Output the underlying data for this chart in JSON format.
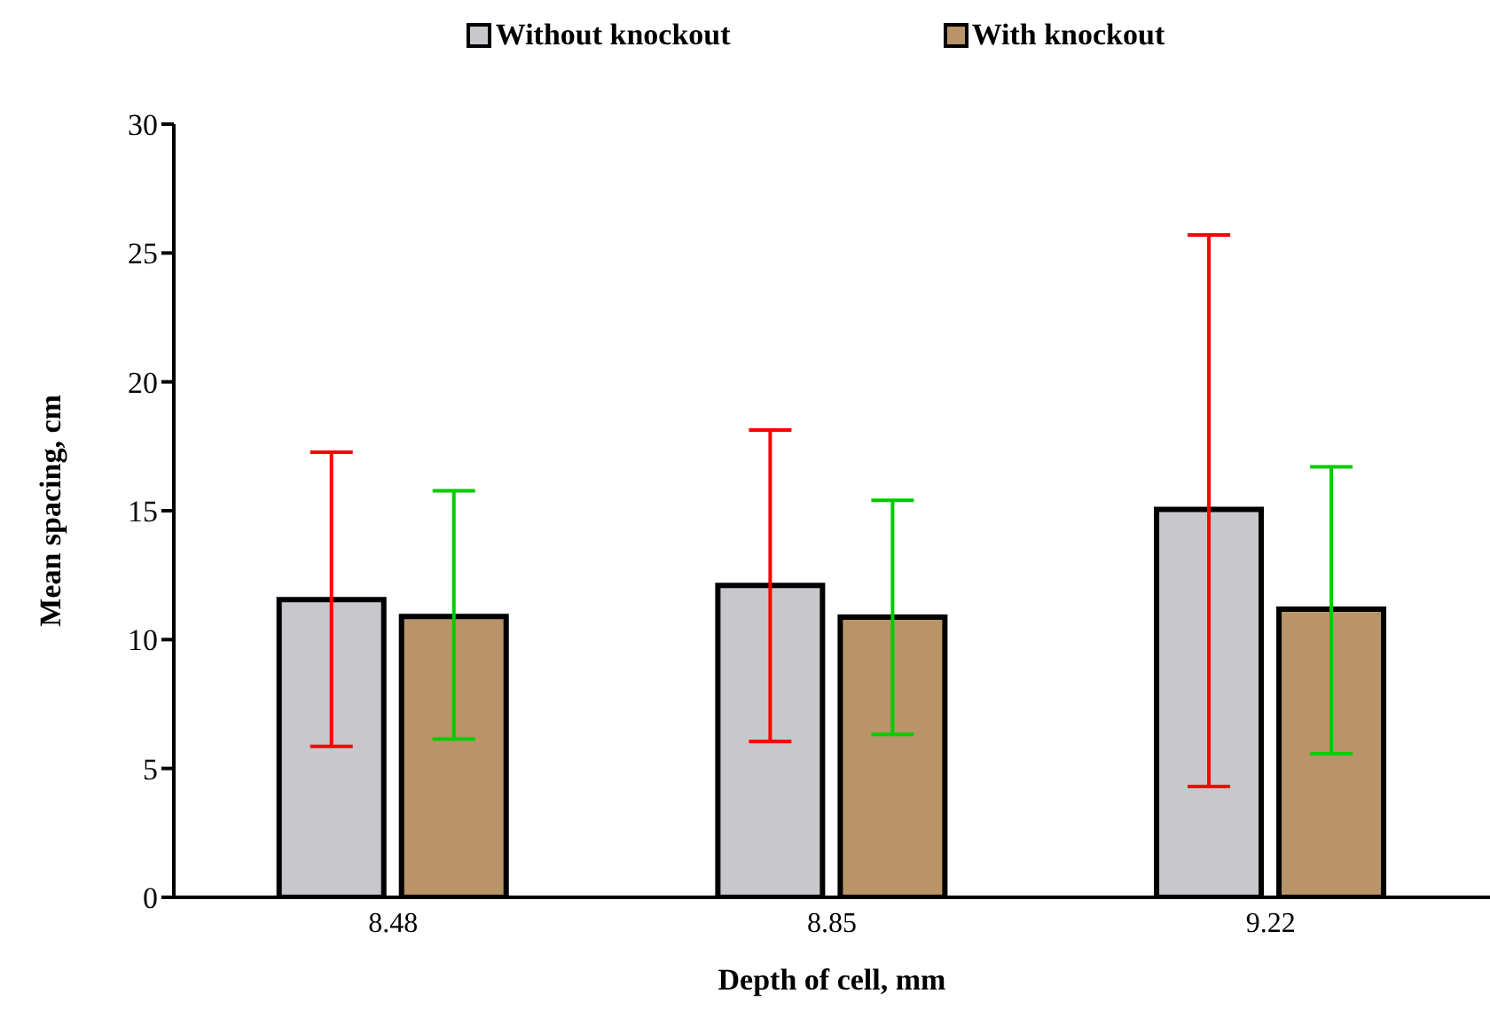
{
  "chart_data": {
    "type": "bar",
    "xlabel": "Depth of cell, mm",
    "ylabel": "Mean spacing, cm",
    "categories": [
      "8.48",
      "8.85",
      "9.22"
    ],
    "series": [
      {
        "name": "Without knockout",
        "color": "#c8c8cc",
        "values": [
          11.55,
          12.1,
          15.05
        ],
        "errors": [
          [
            5.86,
            17.27
          ],
          [
            6.05,
            18.13
          ],
          [
            4.3,
            25.7
          ]
        ]
      },
      {
        "name": "With knockout",
        "color": "#b89468",
        "values": [
          10.9,
          10.87,
          11.18
        ],
        "errors": [
          [
            6.14,
            15.77
          ],
          [
            6.32,
            15.4
          ],
          [
            5.57,
            16.7
          ]
        ]
      }
    ],
    "ylim": [
      0,
      30
    ],
    "yticks": [
      0,
      5,
      10,
      15,
      20,
      25,
      30
    ],
    "grid": false,
    "legend": "top"
  }
}
